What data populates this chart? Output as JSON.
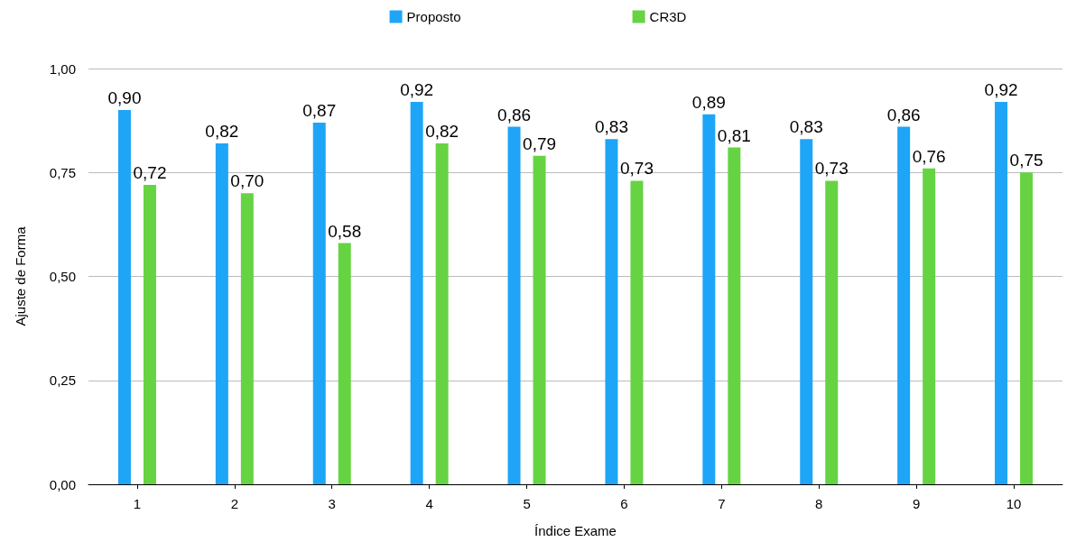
{
  "chart_data": {
    "type": "bar",
    "xlabel": "Índice Exame",
    "ylabel": "Ajuste de Forma",
    "categories": [
      "1",
      "2",
      "3",
      "4",
      "5",
      "6",
      "7",
      "8",
      "9",
      "10"
    ],
    "series": [
      {
        "name": "Proposto",
        "color": "#1ea5f7",
        "values": [
          0.9,
          0.82,
          0.87,
          0.92,
          0.86,
          0.83,
          0.89,
          0.83,
          0.86,
          0.92
        ],
        "value_labels": [
          "0,90",
          "0,82",
          "0,87",
          "0,92",
          "0,86",
          "0,83",
          "0,89",
          "0,83",
          "0,86",
          "0,92"
        ]
      },
      {
        "name": "CR3D",
        "color": "#66d343",
        "values": [
          0.72,
          0.7,
          0.58,
          0.82,
          0.79,
          0.73,
          0.81,
          0.73,
          0.76,
          0.75
        ],
        "value_labels": [
          "0,72",
          "0,70",
          "0,58",
          "0,82",
          "0,79",
          "0,73",
          "0,81",
          "0,73",
          "0,76",
          "0,75"
        ]
      }
    ],
    "ylim": [
      0,
      1
    ],
    "yticks": [
      {
        "value": 0,
        "label": "0,00"
      },
      {
        "value": 0.25,
        "label": "0,25"
      },
      {
        "value": 0.5,
        "label": "0,50"
      },
      {
        "value": 0.75,
        "label": "0,75"
      },
      {
        "value": 1,
        "label": "1,00"
      }
    ],
    "grid": "y",
    "legend": "top"
  }
}
